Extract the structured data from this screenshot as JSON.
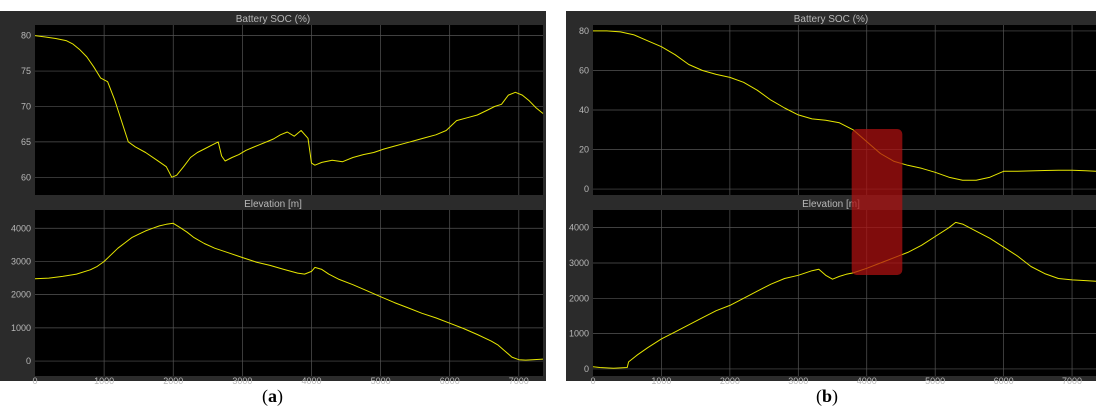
{
  "captions": {
    "a_open": "(",
    "a_letter": "a",
    "a_close": ")",
    "b_open": "(",
    "b_letter": "b",
    "b_close": ")"
  },
  "colors": {
    "background": "#000000",
    "panel": "#2b2b2b",
    "grid": "#555555",
    "axis_text": "#b8b8b8",
    "trace": "#e6e600",
    "highlight": "#b01010"
  },
  "chart_data": [
    {
      "type": "line",
      "panel": "a",
      "subplots": [
        {
          "title": "Battery SOC (%)",
          "xlim": [
            0,
            7350
          ],
          "ylim": [
            57.5,
            81.5
          ],
          "xticks": [],
          "yticks": [
            60,
            65,
            70,
            75,
            80
          ],
          "series": [
            {
              "x": [
                0,
                150,
                300,
                450,
                550,
                650,
                750,
                850,
                950,
                1050,
                1150,
                1250,
                1350,
                1450,
                1600,
                1750,
                1900,
                1980,
                2050,
                2150,
                2250,
                2350,
                2450,
                2550,
                2650,
                2700,
                2750,
                2850,
                2950,
                3050,
                3150,
                3250,
                3350,
                3450,
                3550,
                3650,
                3750,
                3850,
                3950,
                4000,
                4050,
                4150,
                4300,
                4450,
                4600,
                4750,
                4900,
                5050,
                5200,
                5350,
                5500,
                5650,
                5800,
                5950,
                6100,
                6250,
                6400,
                6550,
                6650,
                6750,
                6850,
                6950,
                7050,
                7150,
                7250,
                7350
              ],
              "y": [
                80,
                79.8,
                79.6,
                79.3,
                78.8,
                78,
                77,
                75.6,
                74,
                73.5,
                71,
                68,
                65,
                64.3,
                63.5,
                62.5,
                61.5,
                60,
                60.3,
                61.5,
                62.8,
                63.5,
                64,
                64.5,
                65,
                63,
                62.3,
                62.8,
                63.2,
                63.8,
                64.2,
                64.6,
                65,
                65.4,
                66,
                66.4,
                65.8,
                66.6,
                65.5,
                62,
                61.7,
                62.1,
                62.4,
                62.2,
                62.8,
                63.2,
                63.5,
                64,
                64.4,
                64.8,
                65.2,
                65.6,
                66,
                66.6,
                68,
                68.4,
                68.8,
                69.5,
                70,
                70.3,
                71.6,
                72,
                71.6,
                70.8,
                69.8,
                69
              ]
            }
          ]
        },
        {
          "title": "Elevation [m]",
          "xlim": [
            0,
            7350
          ],
          "ylim": [
            -450,
            4550
          ],
          "xticks": [
            0,
            1000,
            2000,
            3000,
            4000,
            5000,
            6000,
            7000
          ],
          "yticks": [
            0,
            1000,
            2000,
            3000,
            4000
          ],
          "series": [
            {
              "x": [
                0,
                200,
                400,
                600,
                800,
                900,
                1000,
                1100,
                1200,
                1300,
                1400,
                1500,
                1600,
                1700,
                1800,
                1900,
                2000,
                2100,
                2200,
                2300,
                2450,
                2600,
                2800,
                3000,
                3200,
                3400,
                3600,
                3800,
                3900,
                4000,
                4050,
                4150,
                4250,
                4400,
                4600,
                4800,
                5000,
                5200,
                5400,
                5600,
                5800,
                6000,
                6200,
                6400,
                6600,
                6700,
                6800,
                6900,
                7000,
                7100,
                7200,
                7350
              ],
              "y": [
                2480,
                2500,
                2550,
                2620,
                2750,
                2850,
                3000,
                3200,
                3400,
                3560,
                3720,
                3820,
                3920,
                4000,
                4070,
                4120,
                4150,
                4020,
                3880,
                3720,
                3540,
                3400,
                3260,
                3120,
                2980,
                2880,
                2760,
                2650,
                2620,
                2700,
                2820,
                2760,
                2620,
                2460,
                2300,
                2120,
                1940,
                1760,
                1600,
                1440,
                1300,
                1140,
                980,
                800,
                600,
                480,
                300,
                120,
                40,
                30,
                40,
                60
              ]
            }
          ]
        }
      ]
    },
    {
      "type": "line",
      "panel": "b",
      "subplots": [
        {
          "title": "Battery SOC (%)",
          "xlim": [
            0,
            7350
          ],
          "ylim": [
            -3,
            83
          ],
          "xticks": [],
          "yticks": [
            0,
            20,
            40,
            60,
            80
          ],
          "series": [
            {
              "x": [
                0,
                200,
                400,
                600,
                800,
                1000,
                1200,
                1400,
                1600,
                1800,
                2000,
                2200,
                2400,
                2600,
                2800,
                3000,
                3200,
                3400,
                3600,
                3800,
                4000,
                4200,
                4400,
                4600,
                4800,
                5000,
                5200,
                5400,
                5600,
                5800,
                6000,
                6200,
                6400,
                6600,
                6800,
                7000,
                7200,
                7350
              ],
              "y": [
                80,
                80,
                79.5,
                78,
                75,
                72,
                68,
                63,
                60,
                58,
                56.5,
                54,
                50,
                45,
                41,
                37.5,
                35.5,
                34.8,
                33.5,
                30,
                24,
                18,
                14,
                12,
                10.5,
                8.5,
                6,
                4.5,
                4.5,
                6,
                9,
                9,
                9.2,
                9.4,
                9.5,
                9.5,
                9.3,
                9
              ]
            }
          ]
        },
        {
          "title": "Elevation [m]",
          "xlim": [
            0,
            7350
          ],
          "ylim": [
            -200,
            4500
          ],
          "xticks": [
            0,
            1000,
            2000,
            3000,
            4000,
            5000,
            6000,
            7000
          ],
          "yticks": [
            0,
            1000,
            2000,
            3000,
            4000
          ],
          "highlight": {
            "x": [
              3780,
              4520
            ]
          },
          "series": [
            {
              "x": [
                0,
                100,
                300,
                500,
                520,
                650,
                800,
                1000,
                1200,
                1400,
                1600,
                1800,
                2000,
                2200,
                2400,
                2600,
                2800,
                3000,
                3200,
                3300,
                3400,
                3500,
                3600,
                3700,
                3800,
                4000,
                4200,
                4400,
                4600,
                4800,
                5000,
                5200,
                5300,
                5400,
                5600,
                5800,
                6000,
                6200,
                6400,
                6600,
                6800,
                7000,
                7200,
                7350
              ],
              "y": [
                60,
                40,
                20,
                40,
                200,
                400,
                600,
                850,
                1050,
                1250,
                1450,
                1650,
                1800,
                2000,
                2200,
                2400,
                2560,
                2650,
                2780,
                2820,
                2650,
                2540,
                2620,
                2680,
                2720,
                2850,
                3000,
                3150,
                3300,
                3500,
                3750,
                4000,
                4150,
                4100,
                3900,
                3700,
                3450,
                3200,
                2900,
                2700,
                2560,
                2520,
                2500,
                2480
              ]
            }
          ]
        }
      ]
    }
  ]
}
